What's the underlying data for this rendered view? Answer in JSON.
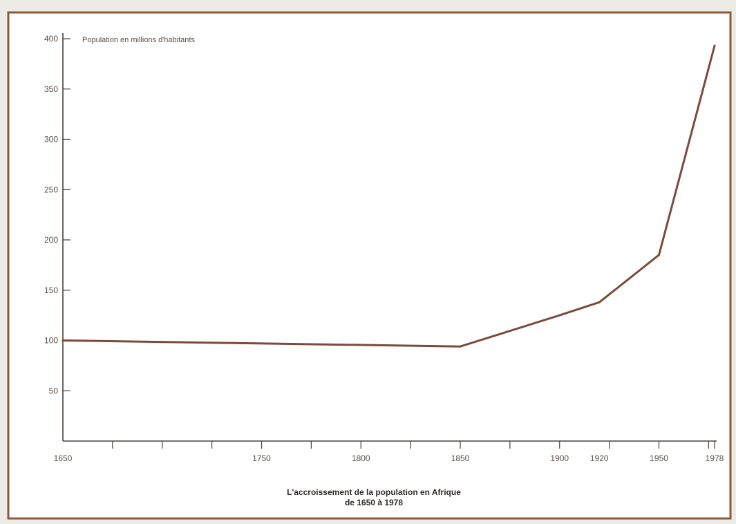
{
  "chart_data": {
    "type": "line",
    "title": "L'accroissement de la population en Afrique",
    "subtitle": "de 1650 à 1978",
    "ylabel": "Population en millions d'habitants",
    "xlabel": "",
    "x": [
      1650,
      1850,
      1900,
      1920,
      1950,
      1978
    ],
    "series": [
      {
        "values": [
          100,
          94,
          125,
          138,
          185,
          393
        ]
      }
    ],
    "xlim": [
      1650,
      1978
    ],
    "ylim": [
      0,
      400
    ],
    "y_ticks": [
      50,
      100,
      150,
      200,
      250,
      300,
      350,
      400
    ],
    "x_tick_labels": [
      "1650",
      "1750",
      "1800",
      "1850",
      "1900",
      "1920",
      "1950",
      "1978"
    ],
    "grid": false,
    "colors": {
      "line": "#7a4a3a",
      "frame": "#8b5a3c",
      "axis": "#4a3f3a",
      "background": "#ffffff"
    }
  }
}
